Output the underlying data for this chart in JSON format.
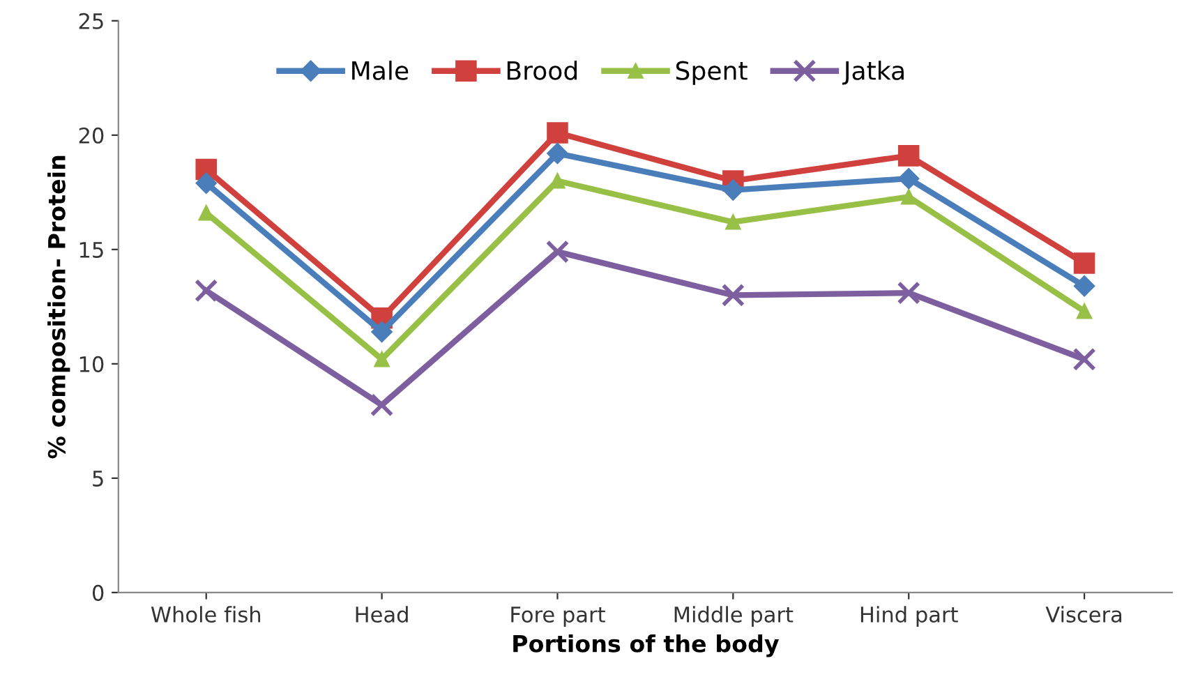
{
  "chart_data": {
    "type": "line",
    "xlabel": "Portions of the body",
    "ylabel": "% composition- Protein",
    "categories": [
      "Whole fish",
      "Head",
      "Fore part",
      "Middle part",
      "Hind part",
      "Viscera"
    ],
    "series": [
      {
        "name": "Male",
        "color": "#4a7ebb",
        "marker": "diamond",
        "values": [
          17.9,
          11.4,
          19.2,
          17.6,
          18.1,
          13.4
        ]
      },
      {
        "name": "Brood",
        "color": "#d0413e",
        "marker": "square",
        "values": [
          18.5,
          12.0,
          20.1,
          18.0,
          19.1,
          14.4
        ]
      },
      {
        "name": "Spent",
        "color": "#98c047",
        "marker": "triangle",
        "values": [
          16.6,
          10.2,
          18.0,
          16.2,
          17.3,
          12.3
        ]
      },
      {
        "name": "Jatka",
        "color": "#7d5fa0",
        "marker": "cross",
        "values": [
          13.2,
          8.2,
          14.9,
          13.0,
          13.1,
          10.2
        ]
      }
    ],
    "ylim": [
      0,
      25
    ],
    "yticks": [
      0,
      5,
      10,
      15,
      20,
      25
    ],
    "grid": false,
    "legend": "top"
  }
}
